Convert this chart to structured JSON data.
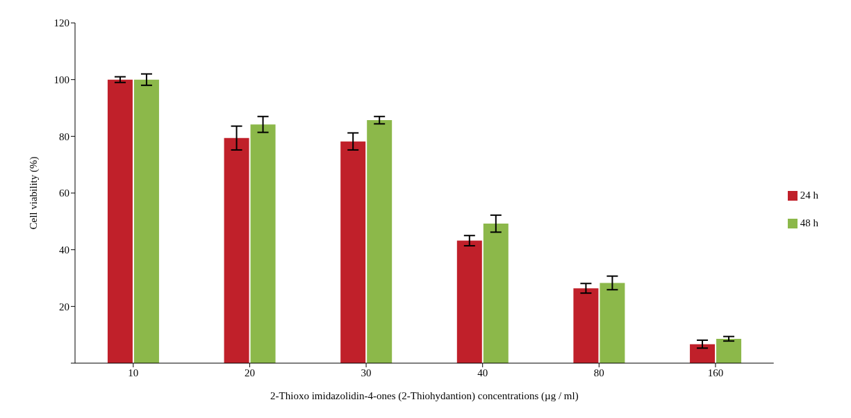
{
  "chart_data": {
    "type": "bar",
    "xlabel": "2-Thioxo imidazolidin-4-ones (2-Thiohydantion) concentrations (µg / ml)",
    "ylabel": "Cell viability (%)",
    "categories": [
      "10",
      "20",
      "30",
      "40",
      "80",
      "160"
    ],
    "series": [
      {
        "name": "24 h",
        "color": "#c0202a",
        "values": [
          100,
          79.4,
          78.2,
          43.2,
          26.4,
          6.7
        ],
        "errors": [
          1,
          4.2,
          3,
          1.8,
          1.7,
          1.4
        ]
      },
      {
        "name": "48 h",
        "color": "#8cb84a",
        "values": [
          100,
          84.2,
          85.7,
          49.2,
          28.3,
          8.6
        ],
        "errors": [
          2,
          2.8,
          1.3,
          3,
          2.4,
          0.8
        ]
      }
    ],
    "ylim": [
      0,
      120
    ],
    "yticks": [
      {
        "value": 0,
        "label": null
      },
      20,
      40,
      60,
      80,
      100,
      120
    ],
    "grid": false,
    "legend": "right"
  }
}
